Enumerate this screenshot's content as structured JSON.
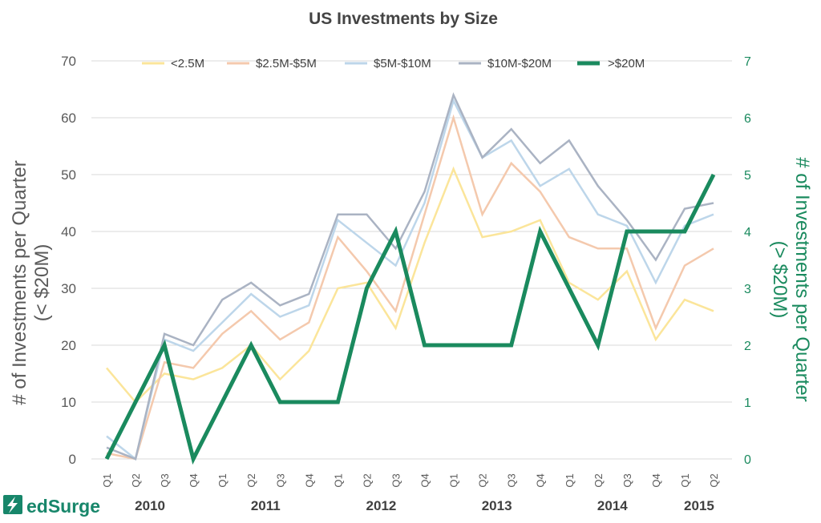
{
  "chart_data": {
    "type": "line",
    "title": "US Investments by Size",
    "ylabel_left_line1": "# of Investments per Quarter",
    "ylabel_left_line2": "(< $20M)",
    "ylabel_right_line1": "# of Investments per Quarter",
    "ylabel_right_line2": "(> $20M)",
    "ylim_left": [
      0,
      70
    ],
    "ylim_right": [
      0,
      7
    ],
    "yticks_left": [
      "0",
      "10",
      "20",
      "30",
      "40",
      "50",
      "60",
      "70"
    ],
    "yticks_right": [
      "0",
      "1",
      "2",
      "3",
      "4",
      "5",
      "6",
      "7"
    ],
    "grid": true,
    "legend_position": "top",
    "quarters": [
      "Q1",
      "Q2",
      "Q3",
      "Q4",
      "Q1",
      "Q2",
      "Q3",
      "Q4",
      "Q1",
      "Q2",
      "Q3",
      "Q4",
      "Q1",
      "Q2",
      "Q3",
      "Q4",
      "Q1",
      "Q2",
      "Q3",
      "Q4",
      "Q1",
      "Q2"
    ],
    "years": [
      {
        "label": "2010",
        "start": 0,
        "end": 3
      },
      {
        "label": "2011",
        "start": 4,
        "end": 7
      },
      {
        "label": "2012",
        "start": 8,
        "end": 11
      },
      {
        "label": "2013",
        "start": 12,
        "end": 15
      },
      {
        "label": "2014",
        "start": 16,
        "end": 19
      },
      {
        "label": "2015",
        "start": 20,
        "end": 21
      }
    ],
    "series": [
      {
        "name": "<2.5M",
        "axis": "left",
        "color": "#fbe59a",
        "values": [
          16,
          10,
          15,
          14,
          16,
          20,
          14,
          19,
          30,
          31,
          23,
          38,
          51,
          39,
          40,
          42,
          31,
          28,
          33,
          21,
          28,
          26
        ]
      },
      {
        "name": "$2.5M-$5M",
        "axis": "left",
        "color": "#f4c9ad",
        "values": [
          1,
          0,
          17,
          16,
          22,
          26,
          21,
          24,
          39,
          33,
          26,
          43,
          60,
          43,
          52,
          47,
          39,
          37,
          37,
          23,
          34,
          37
        ]
      },
      {
        "name": "$5M-$10M",
        "axis": "left",
        "color": "#bdd6ea",
        "values": [
          4,
          0,
          21,
          19,
          24,
          29,
          25,
          27,
          42,
          38,
          34,
          45,
          63,
          53,
          56,
          48,
          51,
          43,
          41,
          31,
          41,
          43
        ]
      },
      {
        "name": "$10M-$20M",
        "axis": "left",
        "color": "#aab3c3",
        "values": [
          2,
          0,
          22,
          20,
          28,
          31,
          27,
          29,
          43,
          43,
          37,
          47,
          64,
          53,
          58,
          52,
          56,
          48,
          42,
          35,
          44,
          45
        ]
      },
      {
        "name": ">$20M",
        "axis": "right",
        "color": "#1a8a5e",
        "values": [
          0,
          1,
          2,
          0,
          1,
          2,
          1,
          1,
          1,
          3,
          4,
          2,
          2,
          2,
          2,
          4,
          3,
          2,
          4,
          4,
          4,
          5
        ]
      }
    ]
  },
  "logo": {
    "text": "edSurge",
    "icon": "lightning-bolt-icon"
  }
}
